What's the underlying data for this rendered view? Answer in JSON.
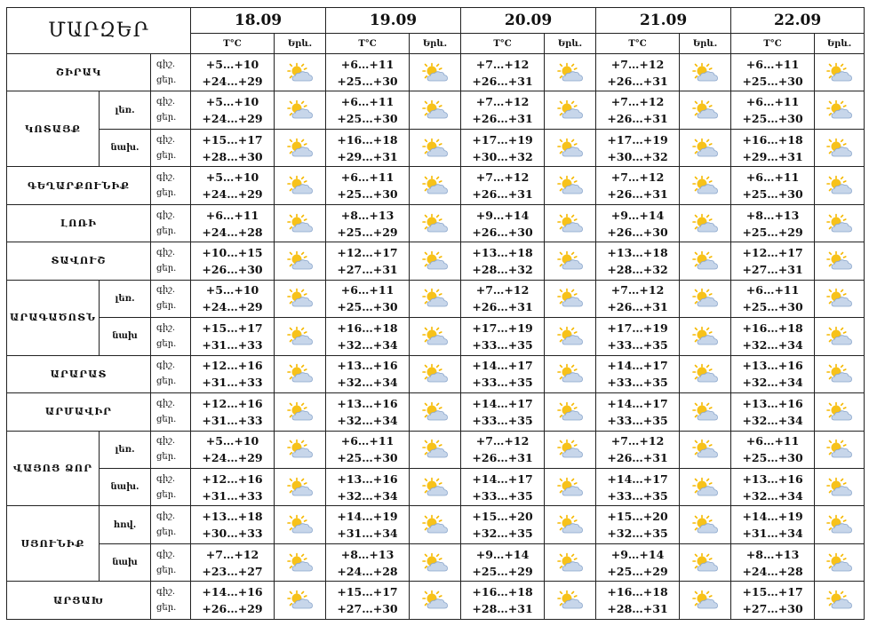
{
  "header": {
    "title": "ՄԱՐԶԵՐ",
    "temp_label": "T°C",
    "weather_label": "Երև."
  },
  "dates": [
    "18.09",
    "19.09",
    "20.09",
    "21.09",
    "22.09"
  ],
  "icon": "partly-cloudy-sun-icon",
  "colors": {
    "sun": "#f5b800",
    "cloud": "#9db8d9"
  },
  "regions": [
    {
      "name": "ՇԻՐԱԿ",
      "rows": [
        {
          "sub": "",
          "l1": "գիշ.",
          "l2": "ցեր.",
          "t": [
            [
              "+5…+10",
              "+24…+29"
            ],
            [
              "+6…+11",
              "+25…+30"
            ],
            [
              "+7…+12",
              "+26…+31"
            ],
            [
              "+7…+12",
              "+26…+31"
            ],
            [
              "+6…+11",
              "+25…+30"
            ]
          ]
        }
      ]
    },
    {
      "name": "ԿՈՏԱՅՔ",
      "rows": [
        {
          "sub": "լեռ.",
          "l1": "գիշ.",
          "l2": "ցեր.",
          "t": [
            [
              "+5…+10",
              "+24…+29"
            ],
            [
              "+6…+11",
              "+25…+30"
            ],
            [
              "+7…+12",
              "+26…+31"
            ],
            [
              "+7…+12",
              "+26…+31"
            ],
            [
              "+6…+11",
              "+25…+30"
            ]
          ]
        },
        {
          "sub": "նախ.",
          "l1": "գիշ.",
          "l2": "ցեր.",
          "t": [
            [
              "+15…+17",
              "+28…+30"
            ],
            [
              "+16…+18",
              "+29…+31"
            ],
            [
              "+17…+19",
              "+30…+32"
            ],
            [
              "+17…+19",
              "+30…+32"
            ],
            [
              "+16…+18",
              "+29…+31"
            ]
          ]
        }
      ]
    },
    {
      "name": "ԳԵՂԱՐՔՈՒՆԻՔ",
      "rows": [
        {
          "sub": "",
          "l1": "գիշ.",
          "l2": "ցեր.",
          "t": [
            [
              "+5…+10",
              "+24…+29"
            ],
            [
              "+6…+11",
              "+25…+30"
            ],
            [
              "+7…+12",
              "+26…+31"
            ],
            [
              "+7…+12",
              "+26…+31"
            ],
            [
              "+6…+11",
              "+25…+30"
            ]
          ]
        }
      ]
    },
    {
      "name": "ԼՈՌԻ",
      "rows": [
        {
          "sub": "",
          "l1": "գիշ.",
          "l2": "ցեր.",
          "t": [
            [
              "+6…+11",
              "+24…+28"
            ],
            [
              "+8…+13",
              "+25…+29"
            ],
            [
              "+9…+14",
              "+26…+30"
            ],
            [
              "+9…+14",
              "+26…+30"
            ],
            [
              "+8…+13",
              "+25…+29"
            ]
          ]
        }
      ]
    },
    {
      "name": "ՏԱՎՈՒՇ",
      "rows": [
        {
          "sub": "",
          "l1": "գիշ.",
          "l2": "ցեր.",
          "t": [
            [
              "+10…+15",
              "+26…+30"
            ],
            [
              "+12…+17",
              "+27…+31"
            ],
            [
              "+13…+18",
              "+28…+32"
            ],
            [
              "+13…+18",
              "+28…+32"
            ],
            [
              "+12…+17",
              "+27…+31"
            ]
          ]
        }
      ]
    },
    {
      "name": "ԱՐԱԳԱԾՈՏՆ",
      "rows": [
        {
          "sub": "լեռ.",
          "l1": "գիշ.",
          "l2": "ցեր.",
          "t": [
            [
              "+5…+10",
              "+24…+29"
            ],
            [
              "+6…+11",
              "+25…+30"
            ],
            [
              "+7…+12",
              "+26…+31"
            ],
            [
              "+7…+12",
              "+26…+31"
            ],
            [
              "+6…+11",
              "+25…+30"
            ]
          ]
        },
        {
          "sub": "նախ",
          "l1": "գիշ.",
          "l2": "ցեր.",
          "t": [
            [
              "+15…+17",
              "+31…+33"
            ],
            [
              "+16…+18",
              "+32…+34"
            ],
            [
              "+17…+19",
              "+33…+35"
            ],
            [
              "+17…+19",
              "+33…+35"
            ],
            [
              "+16…+18",
              "+32…+34"
            ]
          ]
        }
      ]
    },
    {
      "name": "ԱՐԱՐԱՏ",
      "rows": [
        {
          "sub": "",
          "l1": "գիշ.",
          "l2": "ցեր.",
          "t": [
            [
              "+12…+16",
              "+31…+33"
            ],
            [
              "+13…+16",
              "+32…+34"
            ],
            [
              "+14…+17",
              "+33…+35"
            ],
            [
              "+14…+17",
              "+33…+35"
            ],
            [
              "+13…+16",
              "+32…+34"
            ]
          ]
        }
      ]
    },
    {
      "name": "ԱՐՄԱՎԻՐ",
      "rows": [
        {
          "sub": "",
          "l1": "գիշ.",
          "l2": "ցեր.",
          "t": [
            [
              "+12…+16",
              "+31…+33"
            ],
            [
              "+13…+16",
              "+32…+34"
            ],
            [
              "+14…+17",
              "+33…+35"
            ],
            [
              "+14…+17",
              "+33…+35"
            ],
            [
              "+13…+16",
              "+32…+34"
            ]
          ]
        }
      ]
    },
    {
      "name": "ՎԱՅՈՑ ՁՈՐ",
      "rows": [
        {
          "sub": "լեռ.",
          "l1": "գիշ.",
          "l2": "ցեր.",
          "t": [
            [
              "+5…+10",
              "+24…+29"
            ],
            [
              "+6…+11",
              "+25…+30"
            ],
            [
              "+7…+12",
              "+26…+31"
            ],
            [
              "+7…+12",
              "+26…+31"
            ],
            [
              "+6…+11",
              "+25…+30"
            ]
          ]
        },
        {
          "sub": "նախ.",
          "l1": "գիշ.",
          "l2": "ցեր.",
          "t": [
            [
              "+12…+16",
              "+31…+33"
            ],
            [
              "+13…+16",
              "+32…+34"
            ],
            [
              "+14…+17",
              "+33…+35"
            ],
            [
              "+14…+17",
              "+33…+35"
            ],
            [
              "+13…+16",
              "+32…+34"
            ]
          ]
        }
      ]
    },
    {
      "name": "ՍՅՈՒՆԻՔ",
      "rows": [
        {
          "sub": "հով.",
          "l1": "գիշ.",
          "l2": "ցեր.",
          "t": [
            [
              "+13…+18",
              "+30…+33"
            ],
            [
              "+14…+19",
              "+31…+34"
            ],
            [
              "+15…+20",
              "+32…+35"
            ],
            [
              "+15…+20",
              "+32…+35"
            ],
            [
              "+14…+19",
              "+31…+34"
            ]
          ]
        },
        {
          "sub": "նախ",
          "l1": "գիշ.",
          "l2": "ցեր.",
          "t": [
            [
              "+7…+12",
              "+23…+27"
            ],
            [
              "+8…+13",
              "+24…+28"
            ],
            [
              "+9…+14",
              "+25…+29"
            ],
            [
              "+9…+14",
              "+25…+29"
            ],
            [
              "+8…+13",
              "+24…+28"
            ]
          ]
        }
      ]
    },
    {
      "name": "ԱՐՑԱԽ",
      "rows": [
        {
          "sub": "",
          "l1": "գիշ.",
          "l2": "ցեր.",
          "t": [
            [
              "+14…+16",
              "+26…+29"
            ],
            [
              "+15…+17",
              "+27…+30"
            ],
            [
              "+16…+18",
              "+28…+31"
            ],
            [
              "+16…+18",
              "+28…+31"
            ],
            [
              "+15…+17",
              "+27…+30"
            ]
          ]
        }
      ]
    }
  ]
}
